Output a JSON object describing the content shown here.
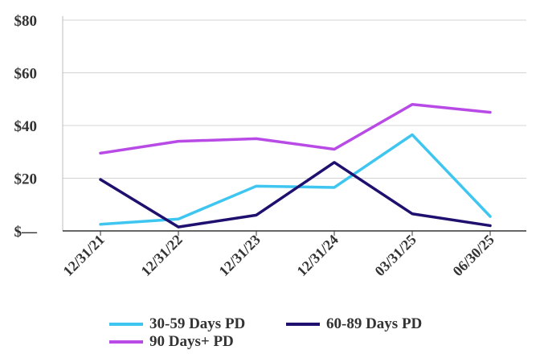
{
  "chart_data": {
    "type": "line",
    "categories": [
      "12/31/21",
      "12/31/22",
      "12/31/23",
      "12/31/24",
      "03/31/25",
      "06/30/25"
    ],
    "y_tick_labels": [
      "$—",
      "$20",
      "$40",
      "$60",
      "$80"
    ],
    "ylim": [
      0,
      80
    ],
    "grid": "horizontal",
    "legend_position": "bottom",
    "series": [
      {
        "name": "30-59 Days PD",
        "color": "#3ec6f0",
        "values": [
          2.5,
          4.5,
          17,
          16.5,
          36.5,
          5.5
        ]
      },
      {
        "name": "60-89 Days PD",
        "color": "#1f0f6e",
        "values": [
          19.5,
          1.5,
          6,
          26,
          6.5,
          2
        ]
      },
      {
        "name": "90 Days+ PD",
        "color": "#b84ae6",
        "values": [
          29.5,
          34,
          35,
          31,
          48,
          45
        ]
      }
    ]
  }
}
